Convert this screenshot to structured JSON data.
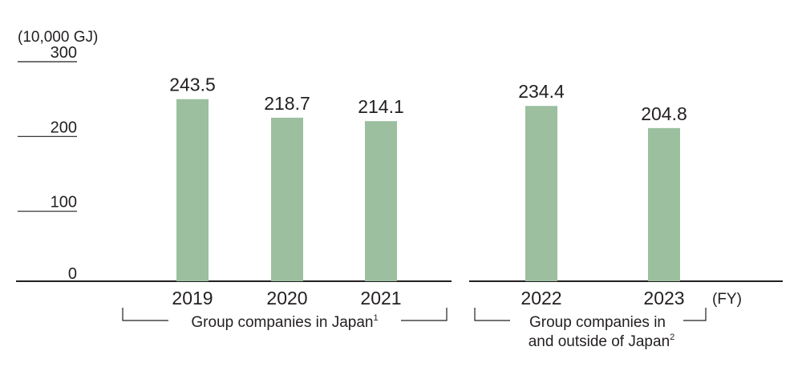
{
  "chart_data": {
    "type": "bar",
    "ylabel": "(10,000 GJ)",
    "xunit": "(FY)",
    "ylim": [
      0,
      300
    ],
    "yticks": [
      0,
      100,
      200,
      300
    ],
    "grid": false,
    "bar_color": "#9bbf9f",
    "axis_color": "#231f20",
    "groups": [
      {
        "label": "Group companies in Japan",
        "footnote": "1",
        "categories": [
          "2019",
          "2020",
          "2021"
        ],
        "values": [
          243.5,
          218.7,
          214.1
        ],
        "value_labels": [
          "243.5",
          "218.7",
          "214.1"
        ]
      },
      {
        "label_lines": [
          "Group companies in",
          "and outside of Japan"
        ],
        "footnote": "2",
        "categories": [
          "2022",
          "2023"
        ],
        "values": [
          234.4,
          204.8
        ],
        "value_labels": [
          "234.4",
          "204.8"
        ]
      }
    ]
  }
}
